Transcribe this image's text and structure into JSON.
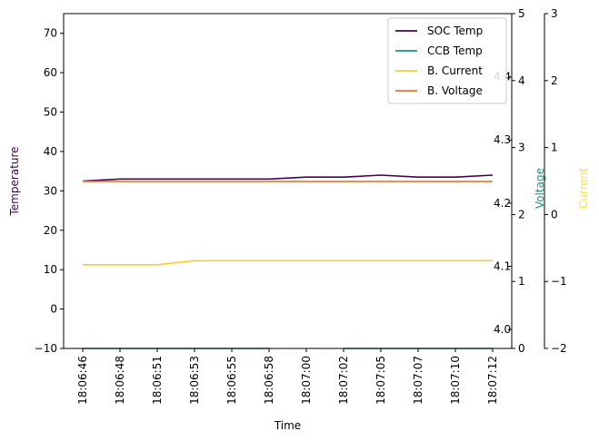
{
  "chart_data": {
    "type": "line",
    "xlabel": "Time",
    "ylabel": "Temperature",
    "categories": [
      "18:06:46",
      "18:06:48",
      "18:06:51",
      "18:06:53",
      "18:06:55",
      "18:06:58",
      "18:07:00",
      "18:07:02",
      "18:07:05",
      "18:07:07",
      "18:07:10",
      "18:07:12"
    ],
    "axes": {
      "temperature": {
        "label": "Temperature",
        "ylim": [
          -10,
          75
        ],
        "ticks": [
          -10,
          0,
          10,
          20,
          30,
          40,
          50,
          60,
          70
        ],
        "label_color": "#440154"
      },
      "voltage_outer": {
        "ylim": [
          0,
          5
        ],
        "ticks": [
          0,
          1,
          2,
          3,
          4,
          5
        ]
      },
      "voltage": {
        "label": "Voltage",
        "ylim": [
          3.97,
          4.5
        ],
        "ticks": [
          4.0,
          4.1,
          4.2,
          4.3,
          4.4
        ],
        "tick_labels": [
          "4.0",
          "4.1",
          "4.2",
          "4.3",
          "4.4"
        ],
        "label_color": "#21918c"
      },
      "current": {
        "label": "Current",
        "ylim": [
          -2,
          3
        ],
        "ticks": [
          -2,
          -1,
          0,
          1,
          2,
          3
        ],
        "tick_labels": [
          "−2",
          "−1",
          "0",
          "1",
          "2",
          "3"
        ],
        "label_color": "#fde725"
      }
    },
    "series": [
      {
        "name": "SOC Temp",
        "axis": "temperature",
        "color": "#440154",
        "values": [
          32.5,
          33,
          33,
          33,
          33,
          33,
          33.5,
          33.5,
          34,
          33.5,
          33.5,
          34
        ]
      },
      {
        "name": "CCB Temp",
        "axis": "temperature",
        "color": "#21918c",
        "values": [
          -10,
          -10,
          -10,
          -10,
          -10,
          -10,
          null,
          -10,
          -10,
          -10,
          -10,
          -10
        ]
      },
      {
        "name": "B. Current",
        "axis": "current",
        "color": "#fecb2e",
        "values": [
          -0.75,
          -0.75,
          -0.75,
          -0.69,
          -0.69,
          -0.69,
          -0.69,
          -0.69,
          -0.69,
          -0.69,
          -0.69,
          -0.69
        ]
      },
      {
        "name": "B. Voltage",
        "axis": "temperature",
        "color": "#e8762b",
        "values": [
          32.4,
          32.4,
          32.4,
          32.4,
          32.4,
          32.4,
          32.4,
          32.4,
          32.4,
          32.4,
          32.4,
          32.4
        ]
      }
    ],
    "legend": "top-right",
    "grid": false
  }
}
